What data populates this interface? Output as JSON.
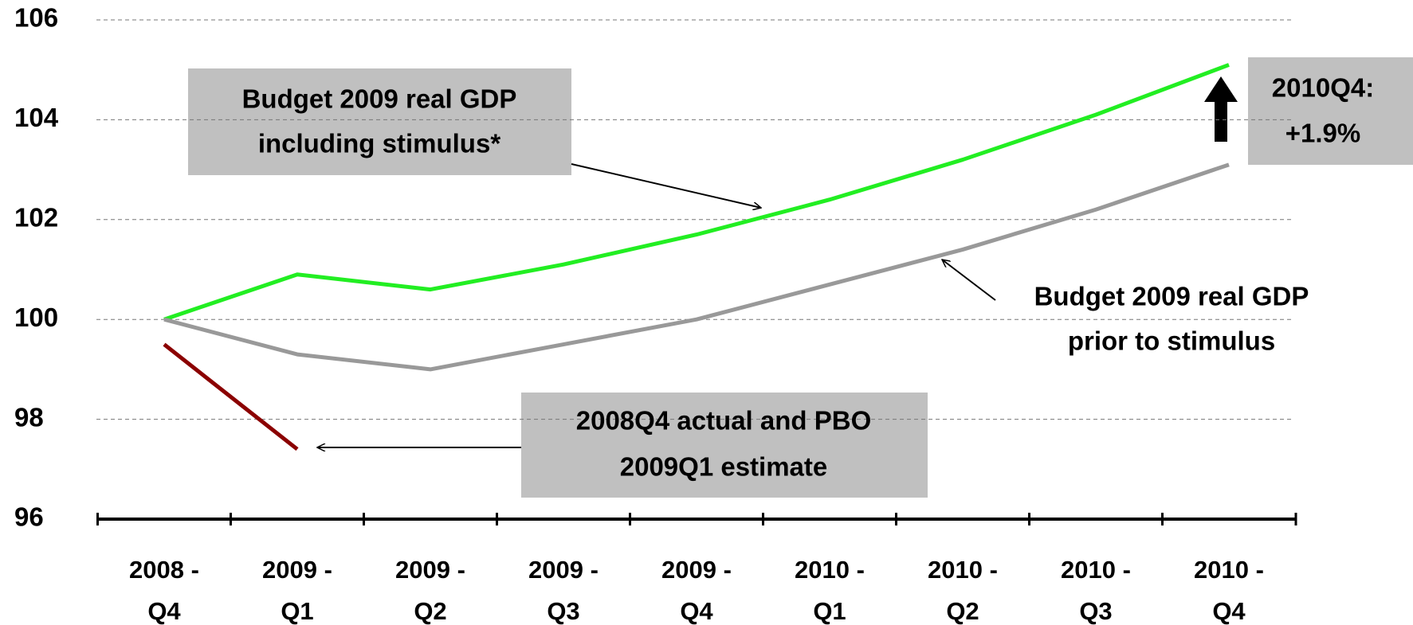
{
  "chart_data": {
    "type": "line",
    "categories": [
      "2008 - Q4",
      "2009 - Q1",
      "2009 - Q2",
      "2009 - Q3",
      "2009 - Q4",
      "2010 - Q1",
      "2010 - Q2",
      "2010 - Q3",
      "2010 - Q4"
    ],
    "series": [
      {
        "color": "#22ee22",
        "values": [
          100,
          100.9,
          100.6,
          101.1,
          101.7,
          102.4,
          103.2,
          104.1,
          105.1
        ]
      },
      {
        "color": "#999999",
        "values": [
          100,
          99.3,
          99.0,
          99.5,
          100.0,
          100.7,
          101.4,
          102.2,
          103.1
        ]
      },
      {
        "color": "#8b0000",
        "values": [
          99.5,
          97.4,
          null,
          null,
          null,
          null,
          null,
          null,
          null
        ]
      }
    ],
    "ylim": [
      96,
      106
    ],
    "yticks": [
      96,
      98,
      100,
      102,
      104,
      106
    ],
    "grid": true,
    "annotations": [
      {
        "lines": [
          "Budget 2009 real GDP",
          "including stimulus*"
        ]
      },
      {
        "lines": [
          "Budget 2009 real GDP",
          "prior to stimulus"
        ]
      },
      {
        "lines": [
          "2008Q4 actual and PBO",
          "2009Q1 estimate"
        ]
      },
      {
        "lines": [
          "2010Q4:",
          "+1.9%"
        ]
      }
    ]
  }
}
